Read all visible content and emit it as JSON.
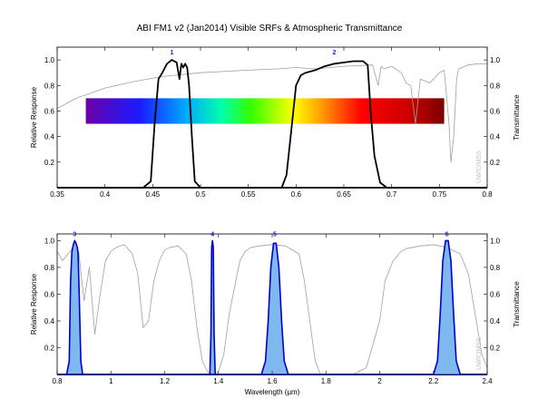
{
  "chart_data": [
    {
      "type": "line",
      "title": "ABI FM1 v2 (Jan2014) Visible SRFs & Atmospheric Transmittance",
      "ylabel": "Relative Response",
      "y2label": "Transmittance",
      "xlim": [
        0.35,
        0.8
      ],
      "ylim": [
        0,
        1.1
      ],
      "xticks": [
        "0.35",
        "0.4",
        "0.45",
        "0.5",
        "0.55",
        "0.6",
        "0.65",
        "0.7",
        "0.75",
        "0.8"
      ],
      "yticks": [
        "0.2",
        "0.4",
        "0.6",
        "0.8",
        "1.0"
      ],
      "credit": "UW/CIMSS",
      "color_bar": {
        "x_start": 0.38,
        "x_end": 0.755,
        "y_low": 0.5,
        "y_high": 0.7
      },
      "band_labels": [
        {
          "label": "1",
          "x": 0.47,
          "y": 1.03
        },
        {
          "label": "2",
          "x": 0.64,
          "y": 1.03
        }
      ],
      "series": [
        {
          "role": "transmittance",
          "color": "#a0a0a0",
          "x": [
            0.35,
            0.37,
            0.4,
            0.43,
            0.46,
            0.5,
            0.55,
            0.58,
            0.6,
            0.62,
            0.65,
            0.68,
            0.686,
            0.689,
            0.692,
            0.7,
            0.71,
            0.715,
            0.72,
            0.725,
            0.73,
            0.74,
            0.75,
            0.755,
            0.76,
            0.762,
            0.765,
            0.768,
            0.77,
            0.78,
            0.79,
            0.8
          ],
          "values": [
            0.62,
            0.7,
            0.78,
            0.83,
            0.87,
            0.9,
            0.92,
            0.93,
            0.94,
            0.93,
            0.95,
            0.96,
            0.8,
            0.95,
            0.93,
            0.95,
            0.9,
            0.82,
            0.8,
            0.5,
            0.85,
            0.82,
            0.9,
            0.92,
            0.5,
            0.2,
            0.4,
            0.85,
            0.93,
            0.96,
            0.97,
            0.97
          ]
        },
        {
          "role": "srf",
          "band": "1",
          "color": "#000000",
          "x": [
            0.35,
            0.44,
            0.448,
            0.452,
            0.456,
            0.46,
            0.465,
            0.47,
            0.475,
            0.478,
            0.48,
            0.482,
            0.484,
            0.486,
            0.488,
            0.491,
            0.494,
            0.5,
            0.8
          ],
          "values": [
            0,
            0,
            0.05,
            0.5,
            0.85,
            0.9,
            0.97,
            1.0,
            0.98,
            0.85,
            0.97,
            0.94,
            0.97,
            0.94,
            0.8,
            0.4,
            0.05,
            0,
            0
          ]
        },
        {
          "role": "srf",
          "band": "2",
          "color": "#000000",
          "x": [
            0.35,
            0.585,
            0.59,
            0.595,
            0.6,
            0.605,
            0.61,
            0.62,
            0.63,
            0.64,
            0.65,
            0.66,
            0.67,
            0.675,
            0.678,
            0.682,
            0.688,
            0.695,
            0.8
          ],
          "values": [
            0,
            0,
            0.1,
            0.45,
            0.8,
            0.88,
            0.9,
            0.92,
            0.95,
            0.97,
            0.98,
            0.99,
            0.99,
            0.96,
            0.6,
            0.25,
            0.04,
            0,
            0
          ]
        }
      ]
    },
    {
      "type": "area",
      "xlabel": "Wavelength (µm)",
      "ylabel": "Relative Response",
      "y2label": "Transmittance",
      "xlim": [
        0.8,
        2.4
      ],
      "ylim": [
        0,
        1.05
      ],
      "xticks": [
        "0.8",
        "1",
        "1.2",
        "1.4",
        "1.6",
        "1.8",
        "2",
        "2.2",
        "2.4"
      ],
      "yticks": [
        "0.2",
        "0.4",
        "0.6",
        "0.8",
        "1.0"
      ],
      "credit": "UW/CIMSS",
      "band_labels": [
        {
          "label": "3",
          "x": 0.865,
          "y": 1.02
        },
        {
          "label": "4",
          "x": 1.378,
          "y": 1.02
        },
        {
          "label": "5",
          "x": 1.61,
          "y": 1.02
        },
        {
          "label": "6",
          "x": 2.25,
          "y": 1.02
        }
      ],
      "series": [
        {
          "role": "transmittance",
          "color": "#a0a0a0",
          "x": [
            0.8,
            0.82,
            0.86,
            0.88,
            0.9,
            0.92,
            0.94,
            0.96,
            0.98,
            1.0,
            1.02,
            1.05,
            1.08,
            1.1,
            1.12,
            1.14,
            1.16,
            1.18,
            1.2,
            1.22,
            1.25,
            1.28,
            1.3,
            1.32,
            1.34,
            1.36,
            1.38,
            1.4,
            1.42,
            1.44,
            1.46,
            1.48,
            1.5,
            1.52,
            1.55,
            1.6,
            1.65,
            1.7,
            1.72,
            1.74,
            1.76,
            1.78,
            1.8,
            1.85,
            1.9,
            1.95,
            2.0,
            2.02,
            2.05,
            2.08,
            2.1,
            2.15,
            2.2,
            2.25,
            2.3,
            2.33,
            2.36,
            2.38,
            2.4
          ],
          "values": [
            0.92,
            0.85,
            0.95,
            0.92,
            0.55,
            0.8,
            0.3,
            0.6,
            0.85,
            0.92,
            0.95,
            0.97,
            0.9,
            0.75,
            0.35,
            0.4,
            0.7,
            0.85,
            0.93,
            0.95,
            0.96,
            0.9,
            0.7,
            0.35,
            0.1,
            0.02,
            0.0,
            0.02,
            0.15,
            0.45,
            0.65,
            0.85,
            0.92,
            0.95,
            0.96,
            0.97,
            0.96,
            0.9,
            0.7,
            0.4,
            0.1,
            0.0,
            0.0,
            0.0,
            0.0,
            0.05,
            0.4,
            0.7,
            0.85,
            0.92,
            0.94,
            0.96,
            0.97,
            0.95,
            0.9,
            0.75,
            0.4,
            0.15,
            0.05
          ]
        },
        {
          "role": "srf",
          "band": "3",
          "color": "#0000cc",
          "fill": "#7fb8ee",
          "x": [
            0.8,
            0.835,
            0.845,
            0.85,
            0.855,
            0.86,
            0.865,
            0.87,
            0.875,
            0.878,
            0.882,
            0.888,
            0.895,
            2.4
          ],
          "values": [
            0,
            0,
            0.1,
            0.7,
            0.92,
            0.97,
            1.0,
            0.98,
            0.95,
            0.9,
            0.6,
            0.1,
            0,
            0
          ]
        },
        {
          "role": "srf",
          "band": "4",
          "color": "#0000cc",
          "fill": "#7fb8ee",
          "x": [
            0.8,
            1.368,
            1.372,
            1.375,
            1.378,
            1.381,
            1.384,
            1.388,
            2.4
          ],
          "values": [
            0,
            0,
            0.3,
            0.95,
            1.0,
            0.95,
            0.3,
            0,
            0
          ]
        },
        {
          "role": "srf",
          "band": "5",
          "color": "#0000cc",
          "fill": "#7fb8ee",
          "x": [
            0.8,
            1.56,
            1.575,
            1.585,
            1.595,
            1.605,
            1.615,
            1.625,
            1.635,
            1.645,
            1.66,
            2.4
          ],
          "values": [
            0,
            0,
            0.1,
            0.4,
            0.8,
            0.98,
            0.98,
            0.8,
            0.4,
            0.1,
            0,
            0
          ]
        },
        {
          "role": "srf",
          "band": "6",
          "color": "#0000cc",
          "fill": "#7fb8ee",
          "x": [
            0.8,
            2.2,
            2.215,
            2.225,
            2.235,
            2.245,
            2.255,
            2.265,
            2.275,
            2.285,
            2.3,
            2.4
          ],
          "values": [
            0,
            0,
            0.1,
            0.45,
            0.85,
            1.0,
            1.0,
            0.85,
            0.45,
            0.1,
            0,
            0
          ]
        }
      ]
    }
  ]
}
